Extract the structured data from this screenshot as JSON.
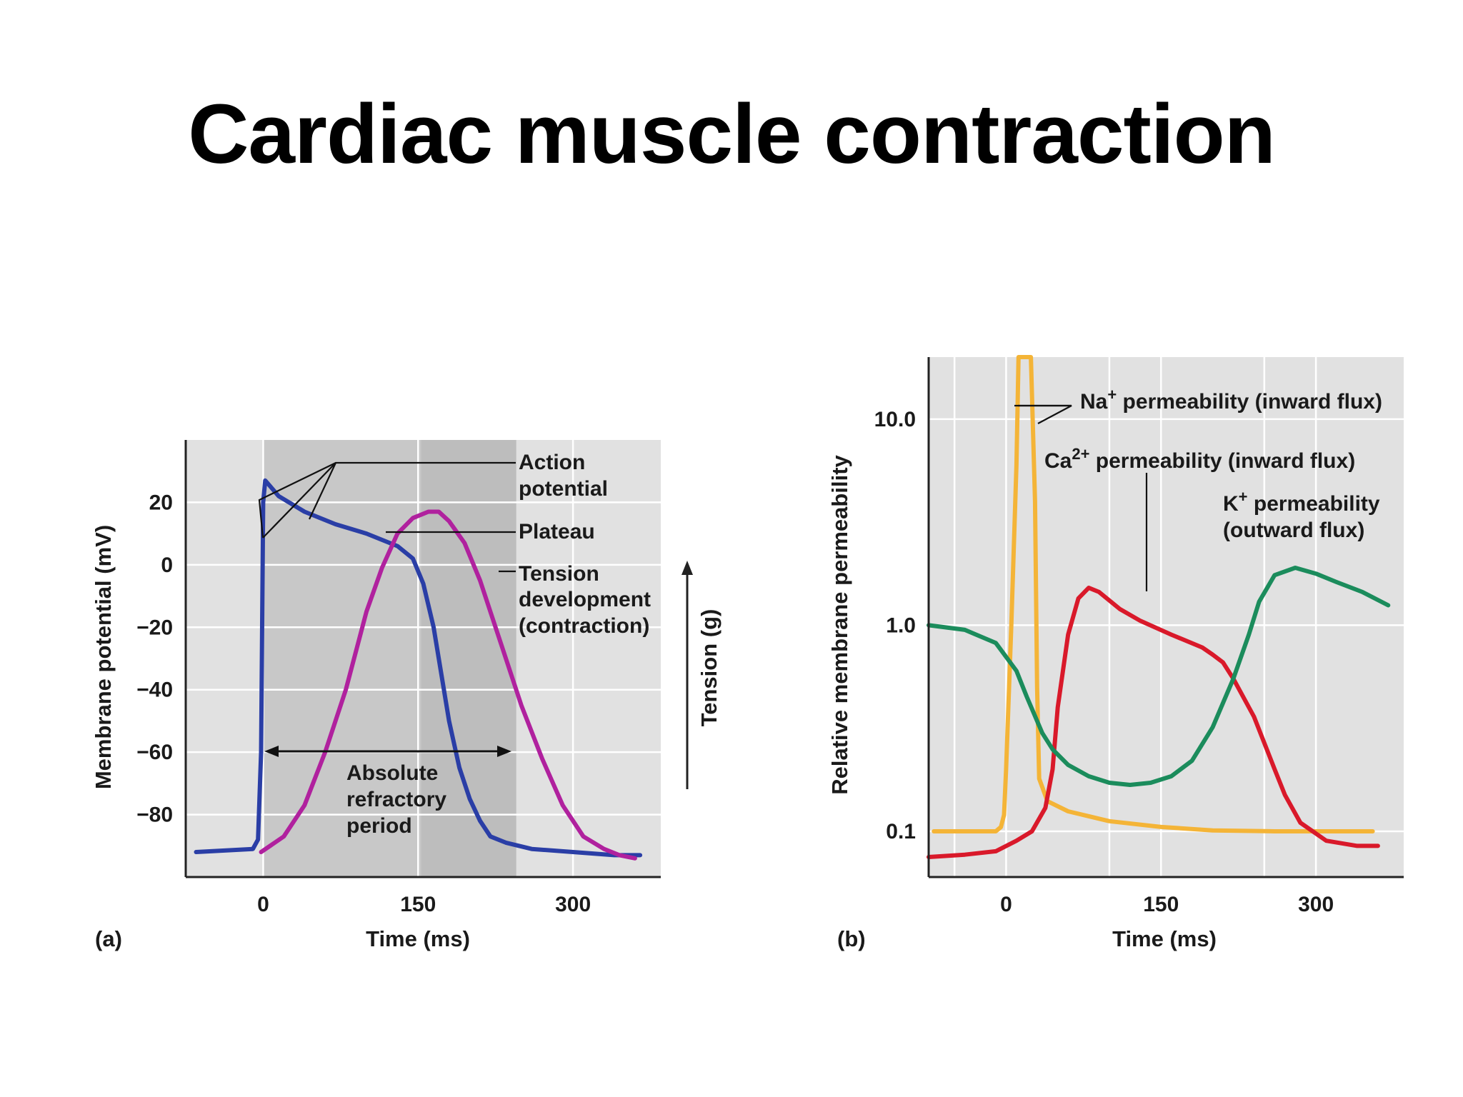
{
  "slide": {
    "title": "Cardiac muscle contraction"
  },
  "colors": {
    "plot_bg": "#e1e1e1",
    "refractory_shade": "#c8c8c8",
    "refractory_shade_dark": "#bdbdbd",
    "grid": "#ffffff",
    "action_potential": "#2a3ea6",
    "tension": "#b0219e",
    "na": "#f4b437",
    "ca": "#d9192a",
    "k": "#1b8c5c",
    "text": "#1a1a1a"
  },
  "chart_data": [
    {
      "id": "a",
      "type": "line",
      "panel_label": "(a)",
      "xlabel": "Time (ms)",
      "ylabel": "Membrane potential (mV)",
      "y2label": "Tension (g)",
      "xlim": [
        -75,
        385
      ],
      "ylim": [
        -100,
        40
      ],
      "xticks": [
        0,
        150,
        300
      ],
      "yticks": [
        20,
        0,
        -20,
        -40,
        -60,
        -80
      ],
      "ytick_labels": [
        "20",
        "0",
        "−20",
        "−40",
        "−60",
        "−80"
      ],
      "grid": true,
      "shaded_interval": [
        0,
        245
      ],
      "shaded_interval_dark": [
        153,
        245
      ],
      "series": [
        {
          "key": "action_potential",
          "color_key": "action_potential",
          "x": [
            -65,
            -10,
            -5,
            -2,
            0,
            2,
            15,
            40,
            70,
            100,
            130,
            145,
            155,
            165,
            170,
            180,
            190,
            200,
            210,
            220,
            235,
            260,
            300,
            340,
            365
          ],
          "y": [
            -92,
            -91,
            -88,
            -60,
            20,
            27,
            22,
            17,
            13,
            10,
            6,
            2,
            -6,
            -20,
            -30,
            -50,
            -65,
            -75,
            -82,
            -87,
            -89,
            -91,
            -92,
            -93,
            -93
          ]
        },
        {
          "key": "tension",
          "color_key": "tension",
          "x": [
            -2,
            20,
            40,
            60,
            80,
            100,
            115,
            130,
            145,
            160,
            170,
            180,
            195,
            210,
            230,
            250,
            270,
            290,
            310,
            330,
            345,
            360
          ],
          "y": [
            -92,
            -87,
            -77,
            -60,
            -40,
            -15,
            -1,
            10,
            15,
            17,
            17,
            14,
            7,
            -5,
            -25,
            -45,
            -62,
            -77,
            -87,
            -91,
            -93,
            -94
          ]
        }
      ],
      "annotations": [
        {
          "text_lines": [
            "Action",
            "potential"
          ]
        },
        {
          "text_lines": [
            "Plateau"
          ]
        },
        {
          "text_lines": [
            "Tension",
            "development",
            "(contraction)"
          ]
        },
        {
          "text_lines": [
            "Absolute",
            "refractory",
            "period"
          ]
        }
      ]
    },
    {
      "id": "b",
      "type": "line",
      "scale_y": "log",
      "panel_label": "(b)",
      "xlabel": "Time (ms)",
      "ylabel": "Relative membrane permeability",
      "xlim": [
        -75,
        385
      ],
      "ylim": [
        0.06,
        20
      ],
      "xticks": [
        0,
        150,
        300
      ],
      "yticks": [
        10.0,
        1.0,
        0.1
      ],
      "ytick_labels": [
        "10.0",
        "1.0",
        "0.1"
      ],
      "grid": true,
      "series": [
        {
          "key": "na",
          "color_key": "na",
          "x": [
            -70,
            -10,
            -5,
            -2,
            0,
            5,
            10,
            12,
            24,
            28,
            30,
            32,
            40,
            60,
            100,
            150,
            200,
            260,
            300,
            355
          ],
          "y": [
            0.1,
            0.1,
            0.105,
            0.12,
            0.2,
            1.0,
            6,
            20,
            20,
            4,
            0.5,
            0.18,
            0.14,
            0.125,
            0.112,
            0.105,
            0.101,
            0.1,
            0.1,
            0.1
          ]
        },
        {
          "key": "ca",
          "color_key": "ca",
          "x": [
            -75,
            -40,
            -10,
            10,
            25,
            38,
            45,
            50,
            60,
            70,
            80,
            90,
            110,
            130,
            160,
            190,
            200,
            210,
            220,
            240,
            260,
            270,
            285,
            310,
            340,
            360
          ],
          "y": [
            0.075,
            0.077,
            0.08,
            0.09,
            0.1,
            0.13,
            0.2,
            0.4,
            0.9,
            1.35,
            1.52,
            1.45,
            1.2,
            1.05,
            0.9,
            0.78,
            0.72,
            0.66,
            0.55,
            0.36,
            0.2,
            0.15,
            0.11,
            0.09,
            0.085,
            0.085
          ]
        },
        {
          "key": "k",
          "color_key": "k",
          "x": [
            -75,
            -40,
            -10,
            10,
            20,
            35,
            45,
            60,
            80,
            100,
            120,
            140,
            160,
            180,
            200,
            220,
            235,
            245,
            260,
            280,
            300,
            320,
            345,
            370
          ],
          "y": [
            1.0,
            0.95,
            0.82,
            0.6,
            0.45,
            0.3,
            0.25,
            0.21,
            0.185,
            0.172,
            0.168,
            0.172,
            0.185,
            0.22,
            0.32,
            0.55,
            0.9,
            1.3,
            1.75,
            1.9,
            1.78,
            1.62,
            1.45,
            1.25
          ]
        }
      ],
      "annotations": [
        {
          "text": "Na",
          "sup": "+",
          "rest": " permeability (inward flux)"
        },
        {
          "text": "Ca",
          "sup": "2+",
          "rest": " permeability (inward flux)"
        },
        {
          "text": "K",
          "sup": "+",
          "rest": " permeability",
          "line2": "(outward flux)"
        }
      ]
    }
  ]
}
